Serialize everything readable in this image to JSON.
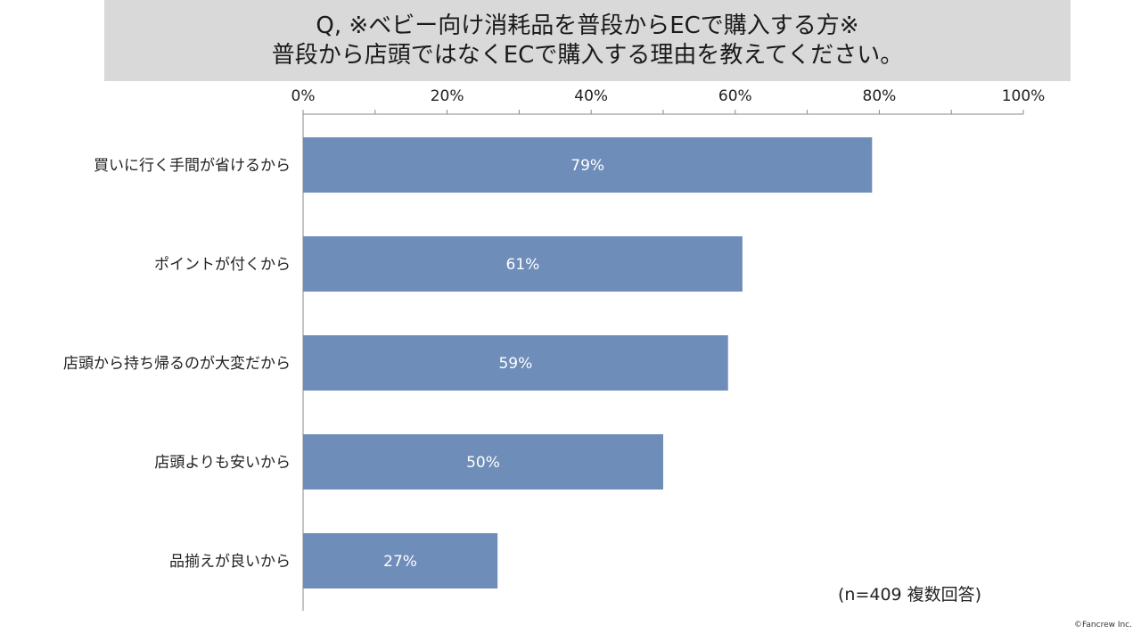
{
  "title": {
    "line1": "Q, ※ベビー向け消耗品を普段からECで購入する方※",
    "line2": "普段から店頭ではなくECで購入する理由を教えてください。"
  },
  "chart_data": {
    "type": "bar",
    "orientation": "horizontal",
    "categories": [
      "買いに行く手間が省けるから",
      "ポイントが付くから",
      "店頭から持ち帰るのが大変だから",
      "店頭よりも安いから",
      "品揃えが良いから"
    ],
    "values": [
      79,
      61,
      59,
      50,
      27
    ],
    "value_labels": [
      "79%",
      "61%",
      "59%",
      "50%",
      "27%"
    ],
    "x_ticks": [
      "0%",
      "20%",
      "40%",
      "60%",
      "80%",
      "100%"
    ],
    "xlim": [
      0,
      100
    ],
    "x_axis_position": "top",
    "bar_color": "#6e8db8",
    "label_color": "#ffffff",
    "grid": false,
    "legend": "none"
  },
  "note": "(n=409 複数回答)",
  "copyright": "©Fancrew Inc."
}
